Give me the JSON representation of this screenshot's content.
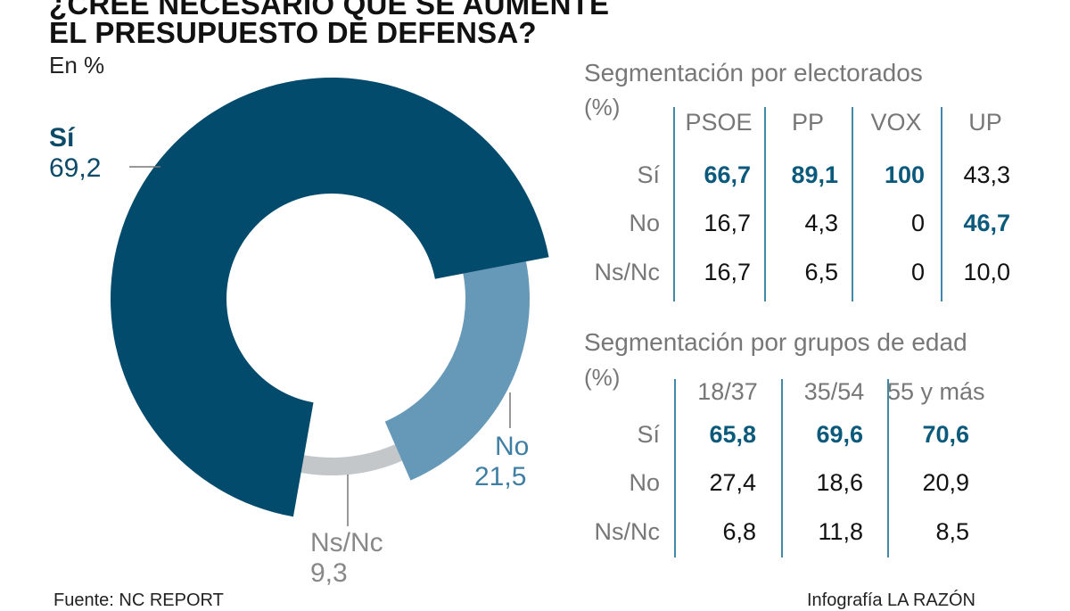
{
  "title_lines": [
    "¿CREE NECESARIO QUE SE AUMENTE",
    "EL PRESUPUESTO DE DEFENSA?"
  ],
  "subtitle": "En %",
  "chart_data": {
    "type": "pie",
    "style": "donut",
    "slices": [
      {
        "label": "Sí",
        "value": 69.2,
        "display": "69,2",
        "color": "#034b6c"
      },
      {
        "label": "No",
        "value": 21.5,
        "display": "21,5",
        "color": "#6699b7"
      },
      {
        "label": "Ns/Nc",
        "value": 9.3,
        "display": "9,3",
        "color": "#c3c7ca"
      }
    ]
  },
  "electorate": {
    "title": "Segmentación por electorados",
    "unit": "(%)",
    "columns": [
      "PSOE",
      "PP",
      "VOX",
      "UP"
    ],
    "rows": [
      {
        "label": "Sí",
        "values": [
          "66,7",
          "89,1",
          "100",
          "43,3"
        ],
        "highlight": [
          true,
          true,
          true,
          false
        ]
      },
      {
        "label": "No",
        "values": [
          "16,7",
          "4,3",
          "0",
          "46,7"
        ],
        "highlight": [
          false,
          false,
          false,
          true
        ]
      },
      {
        "label": "Ns/Nc",
        "values": [
          "16,7",
          "6,5",
          "0",
          "10,0"
        ],
        "highlight": [
          false,
          false,
          false,
          false
        ]
      }
    ]
  },
  "age": {
    "title": "Segmentación por grupos de edad",
    "unit": "(%)",
    "columns": [
      "18/37",
      "35/54",
      "55 y más"
    ],
    "rows": [
      {
        "label": "Sí",
        "values": [
          "65,8",
          "69,6",
          "70,6"
        ],
        "highlight": [
          true,
          true,
          true
        ]
      },
      {
        "label": "No",
        "values": [
          "27,4",
          "18,6",
          "20,9"
        ],
        "highlight": [
          false,
          false,
          false
        ]
      },
      {
        "label": "Ns/Nc",
        "values": [
          "6,8",
          "11,8",
          "8,5"
        ],
        "highlight": [
          false,
          false,
          false
        ]
      }
    ]
  },
  "footer": {
    "source": "Fuente: NC REPORT",
    "credit": "Infografía LA RAZÓN"
  },
  "colors": {
    "accent": "#034b6c",
    "secondary": "#6699b7",
    "neutral": "#c3c7ca",
    "rule": "#3f8aa8"
  }
}
